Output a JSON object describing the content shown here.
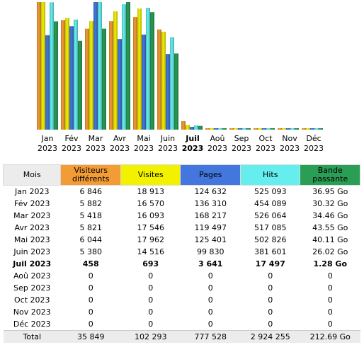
{
  "chart_data": {
    "type": "bar",
    "categories": [
      {
        "month": "Jan",
        "year": "2023"
      },
      {
        "month": "Fév",
        "year": "2023"
      },
      {
        "month": "Mar",
        "year": "2023"
      },
      {
        "month": "Avr",
        "year": "2023"
      },
      {
        "month": "Mai",
        "year": "2023"
      },
      {
        "month": "Juin",
        "year": "2023"
      },
      {
        "month": "Juil",
        "year": "2023"
      },
      {
        "month": "Aoû",
        "year": "2023"
      },
      {
        "month": "Sep",
        "year": "2023"
      },
      {
        "month": "Oct",
        "year": "2023"
      },
      {
        "month": "Nov",
        "year": "2023"
      },
      {
        "month": "Déc",
        "year": "2023"
      }
    ],
    "current_index": 6,
    "series": [
      {
        "name": "Visiteurs différents",
        "color": "#f39c36",
        "values": [
          6846,
          5882,
          5418,
          5821,
          6044,
          5380,
          458,
          0,
          0,
          0,
          0,
          0
        ]
      },
      {
        "name": "Visites",
        "color": "#f2f200",
        "values": [
          18913,
          16570,
          16093,
          17546,
          17962,
          14516,
          693,
          0,
          0,
          0,
          0,
          0
        ]
      },
      {
        "name": "Pages",
        "color": "#4477dd",
        "values": [
          124632,
          136310,
          168217,
          119497,
          125401,
          99830,
          3641,
          0,
          0,
          0,
          0,
          0
        ]
      },
      {
        "name": "Hits",
        "color": "#66eeee",
        "values": [
          525093,
          454089,
          526064,
          517085,
          502826,
          381601,
          17497,
          0,
          0,
          0,
          0,
          0
        ]
      },
      {
        "name": "Bande passante",
        "color": "#2a9e55",
        "values": [
          36.95,
          30.32,
          34.46,
          43.55,
          40.11,
          26.02,
          1.28,
          0,
          0,
          0,
          0,
          0
        ]
      }
    ]
  },
  "table": {
    "headers": {
      "mois": "Mois",
      "visiteurs_1": "Visiteurs",
      "visiteurs_2": "différents",
      "visites": "Visites",
      "pages": "Pages",
      "hits": "Hits",
      "bande_1": "Bande",
      "bande_2": "passante"
    },
    "header_colors": {
      "mois": "#ececec",
      "visiteurs": "#f39c36",
      "visites": "#f2f200",
      "pages": "#4477dd",
      "hits": "#66eeee",
      "bande": "#2a9e55"
    },
    "rows": [
      {
        "mois": "Jan 2023",
        "visiteurs": "6 846",
        "visites": "18 913",
        "pages": "124 632",
        "hits": "525 093",
        "bande": "36.95 Go"
      },
      {
        "mois": "Fév 2023",
        "visiteurs": "5 882",
        "visites": "16 570",
        "pages": "136 310",
        "hits": "454 089",
        "bande": "30.32 Go"
      },
      {
        "mois": "Mar 2023",
        "visiteurs": "5 418",
        "visites": "16 093",
        "pages": "168 217",
        "hits": "526 064",
        "bande": "34.46 Go"
      },
      {
        "mois": "Avr 2023",
        "visiteurs": "5 821",
        "visites": "17 546",
        "pages": "119 497",
        "hits": "517 085",
        "bande": "43.55 Go"
      },
      {
        "mois": "Mai 2023",
        "visiteurs": "6 044",
        "visites": "17 962",
        "pages": "125 401",
        "hits": "502 826",
        "bande": "40.11 Go"
      },
      {
        "mois": "Juin 2023",
        "visiteurs": "5 380",
        "visites": "14 516",
        "pages": "99 830",
        "hits": "381 601",
        "bande": "26.02 Go"
      },
      {
        "mois": "Juil 2023",
        "visiteurs": "458",
        "visites": "693",
        "pages": "3 641",
        "hits": "17 497",
        "bande": "1.28 Go"
      },
      {
        "mois": "Aoû 2023",
        "visiteurs": "0",
        "visites": "0",
        "pages": "0",
        "hits": "0",
        "bande": "0"
      },
      {
        "mois": "Sep 2023",
        "visiteurs": "0",
        "visites": "0",
        "pages": "0",
        "hits": "0",
        "bande": "0"
      },
      {
        "mois": "Oct 2023",
        "visiteurs": "0",
        "visites": "0",
        "pages": "0",
        "hits": "0",
        "bande": "0"
      },
      {
        "mois": "Nov 2023",
        "visiteurs": "0",
        "visites": "0",
        "pages": "0",
        "hits": "0",
        "bande": "0"
      },
      {
        "mois": "Déc 2023",
        "visiteurs": "0",
        "visites": "0",
        "pages": "0",
        "hits": "0",
        "bande": "0"
      }
    ],
    "total": {
      "mois": "Total",
      "visiteurs": "35 849",
      "visites": "102 293",
      "pages": "777 528",
      "hits": "2 924 255",
      "bande": "212.69 Go"
    }
  }
}
